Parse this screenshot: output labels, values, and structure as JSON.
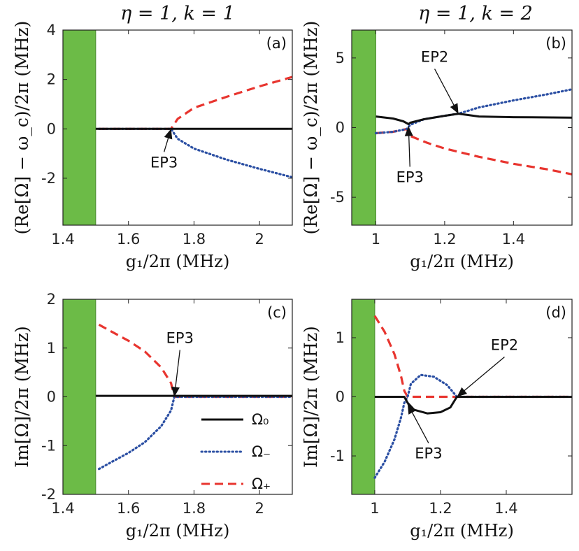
{
  "column_titles": [
    "η = 1, k = 1",
    "η = 1, k = 2"
  ],
  "colors": {
    "omega0": "#111111",
    "omega_minus": "#2b4fa3",
    "omega_plus": "#e8352f",
    "shade": "#6cbb47"
  },
  "legend": [
    {
      "key": "omega0",
      "label": "Ω₀",
      "style": "solid"
    },
    {
      "key": "omega_minus",
      "label": "Ω₋",
      "style": "dotted"
    },
    {
      "key": "omega_plus",
      "label": "Ω₊",
      "style": "dashed"
    }
  ],
  "chart_data": [
    {
      "type": "line",
      "panel": "(a)",
      "xlabel": "g₁/2π (MHz)",
      "ylabel": "(Re[Ω] − ω_c)/2π (MHz)",
      "xlim": [
        1.4,
        2.1
      ],
      "ylim": [
        -3.9,
        4
      ],
      "xticks": [
        1.4,
        1.6,
        1.8,
        2
      ],
      "xtick_labels": [
        "1.4",
        "1.6",
        "1.8",
        "2"
      ],
      "yticks": [
        4,
        2,
        0,
        -2
      ],
      "ytick_labels": [
        "4",
        "2",
        "0",
        "-2"
      ],
      "shaded_x": [
        1.4,
        1.5
      ],
      "series": [
        {
          "key": "omega0",
          "style": "solid",
          "points": [
            [
              1.5,
              0
            ],
            [
              2.1,
              0
            ]
          ]
        },
        {
          "key": "omega_minus",
          "style": "dotted",
          "points": [
            [
              1.51,
              0
            ],
            [
              1.73,
              0
            ],
            [
              1.75,
              -0.4
            ],
            [
              1.8,
              -0.8
            ],
            [
              1.9,
              -1.25
            ],
            [
              2.0,
              -1.62
            ],
            [
              2.1,
              -1.96
            ]
          ]
        },
        {
          "key": "omega_plus",
          "style": "dashed",
          "points": [
            [
              1.51,
              0
            ],
            [
              1.73,
              0
            ],
            [
              1.75,
              0.4
            ],
            [
              1.8,
              0.85
            ],
            [
              1.9,
              1.3
            ],
            [
              2.0,
              1.72
            ],
            [
              2.1,
              2.1
            ]
          ]
        }
      ],
      "annotations": [
        {
          "label": "EP3",
          "x": 1.73,
          "y": 0
        }
      ]
    },
    {
      "type": "line",
      "panel": "(b)",
      "xlabel": "g₁/2π (MHz)",
      "ylabel": "(Re[Ω] − ω_c)/2π (MHz)",
      "xlim": [
        0.93,
        1.57
      ],
      "ylim": [
        -7,
        7
      ],
      "xticks": [
        1.0,
        1.2,
        1.4
      ],
      "xtick_labels": [
        "1",
        "1.2",
        "1.4"
      ],
      "yticks": [
        5,
        0,
        -5
      ],
      "ytick_labels": [
        "5",
        "0",
        "-5"
      ],
      "shaded_x": [
        0.93,
        1.0
      ],
      "series": [
        {
          "key": "omega0",
          "style": "solid",
          "points": [
            [
              1.0,
              0.8
            ],
            [
              1.05,
              0.65
            ],
            [
              1.08,
              0.45
            ],
            [
              1.095,
              0.25
            ],
            [
              1.1,
              0.35
            ],
            [
              1.14,
              0.6
            ],
            [
              1.2,
              0.85
            ],
            [
              1.24,
              1.0
            ],
            [
              1.3,
              0.8
            ],
            [
              1.4,
              0.75
            ],
            [
              1.57,
              0.72
            ]
          ]
        },
        {
          "key": "omega_minus",
          "style": "dotted",
          "points": [
            [
              1.0,
              -0.4
            ],
            [
              1.05,
              -0.3
            ],
            [
              1.09,
              -0.1
            ],
            [
              1.1,
              0.2
            ],
            [
              1.14,
              0.6
            ],
            [
              1.2,
              0.85
            ],
            [
              1.24,
              1.0
            ],
            [
              1.3,
              1.45
            ],
            [
              1.4,
              1.95
            ],
            [
              1.5,
              2.4
            ],
            [
              1.57,
              2.75
            ]
          ]
        },
        {
          "key": "omega_plus",
          "style": "dashed",
          "points": [
            [
              1.0,
              -0.4
            ],
            [
              1.05,
              -0.3
            ],
            [
              1.09,
              -0.1
            ],
            [
              1.1,
              -0.6
            ],
            [
              1.15,
              -1.1
            ],
            [
              1.2,
              -1.5
            ],
            [
              1.3,
              -2.1
            ],
            [
              1.4,
              -2.6
            ],
            [
              1.5,
              -3.0
            ],
            [
              1.57,
              -3.35
            ]
          ]
        }
      ],
      "annotations": [
        {
          "label": "EP2",
          "x": 1.24,
          "y": 1.0
        },
        {
          "label": "EP3",
          "x": 1.095,
          "y": 0.1
        }
      ]
    },
    {
      "type": "line",
      "panel": "(c)",
      "xlabel": "g₁/2π (MHz)",
      "ylabel": "Im[Ω]/2π (MHz)",
      "xlim": [
        1.4,
        2.1
      ],
      "ylim": [
        -2,
        2
      ],
      "xticks": [
        1.4,
        1.6,
        1.8,
        2
      ],
      "xtick_labels": [
        "1.4",
        "1.6",
        "1.8",
        "2"
      ],
      "yticks": [
        2,
        1,
        0,
        -1,
        -2
      ],
      "ytick_labels": [
        "2",
        "1",
        "0",
        "-1",
        "-2"
      ],
      "shaded_x": [
        1.4,
        1.5
      ],
      "series": [
        {
          "key": "omega0",
          "style": "solid",
          "points": [
            [
              1.5,
              0.02
            ],
            [
              1.74,
              0.02
            ],
            [
              2.1,
              0.02
            ]
          ]
        },
        {
          "key": "omega_minus",
          "style": "dotted",
          "points": [
            [
              1.51,
              -1.48
            ],
            [
              1.55,
              -1.33
            ],
            [
              1.6,
              -1.15
            ],
            [
              1.65,
              -0.93
            ],
            [
              1.7,
              -0.6
            ],
            [
              1.73,
              -0.28
            ],
            [
              1.74,
              0
            ],
            [
              2.1,
              0
            ]
          ]
        },
        {
          "key": "omega_plus",
          "style": "dashed",
          "points": [
            [
              1.51,
              1.48
            ],
            [
              1.55,
              1.33
            ],
            [
              1.6,
              1.15
            ],
            [
              1.65,
              0.93
            ],
            [
              1.7,
              0.6
            ],
            [
              1.73,
              0.28
            ],
            [
              1.74,
              0
            ],
            [
              2.1,
              0
            ]
          ]
        }
      ],
      "annotations": [
        {
          "label": "EP3",
          "x": 1.74,
          "y": 0
        }
      ]
    },
    {
      "type": "line",
      "panel": "(d)",
      "xlabel": "g₁/2π (MHz)",
      "ylabel": "Im[Ω]/2π (MHz)",
      "xlim": [
        0.93,
        1.6
      ],
      "ylim": [
        -1.65,
        1.65
      ],
      "xticks": [
        1.0,
        1.2,
        1.4
      ],
      "xtick_labels": [
        "1",
        "1.2",
        "1.4"
      ],
      "yticks": [
        1,
        0,
        -1
      ],
      "ytick_labels": [
        "1",
        "0",
        "-1"
      ],
      "shaded_x": [
        0.93,
        1.0
      ],
      "series": [
        {
          "key": "omega0",
          "style": "solid",
          "points": [
            [
              1.0,
              0
            ],
            [
              1.09,
              0
            ],
            [
              1.1,
              -0.1
            ],
            [
              1.12,
              -0.22
            ],
            [
              1.16,
              -0.28
            ],
            [
              1.2,
              -0.26
            ],
            [
              1.23,
              -0.18
            ],
            [
              1.25,
              0
            ],
            [
              1.6,
              0
            ]
          ]
        },
        {
          "key": "omega_minus",
          "style": "dotted",
          "points": [
            [
              1.0,
              -1.37
            ],
            [
              1.03,
              -1.1
            ],
            [
              1.06,
              -0.72
            ],
            [
              1.08,
              -0.35
            ],
            [
              1.09,
              -0.1
            ],
            [
              1.1,
              0
            ],
            [
              1.11,
              0.22
            ],
            [
              1.14,
              0.37
            ],
            [
              1.18,
              0.34
            ],
            [
              1.22,
              0.2
            ],
            [
              1.25,
              0
            ],
            [
              1.6,
              0
            ]
          ]
        },
        {
          "key": "omega_plus",
          "style": "dashed",
          "points": [
            [
              1.0,
              1.37
            ],
            [
              1.03,
              1.1
            ],
            [
              1.06,
              0.72
            ],
            [
              1.08,
              0.35
            ],
            [
              1.09,
              0.1
            ],
            [
              1.1,
              0
            ],
            [
              1.6,
              0
            ]
          ]
        }
      ],
      "annotations": [
        {
          "label": "EP2",
          "x": 1.25,
          "y": 0
        },
        {
          "label": "EP3",
          "x": 1.1,
          "y": -0.12
        }
      ]
    }
  ]
}
